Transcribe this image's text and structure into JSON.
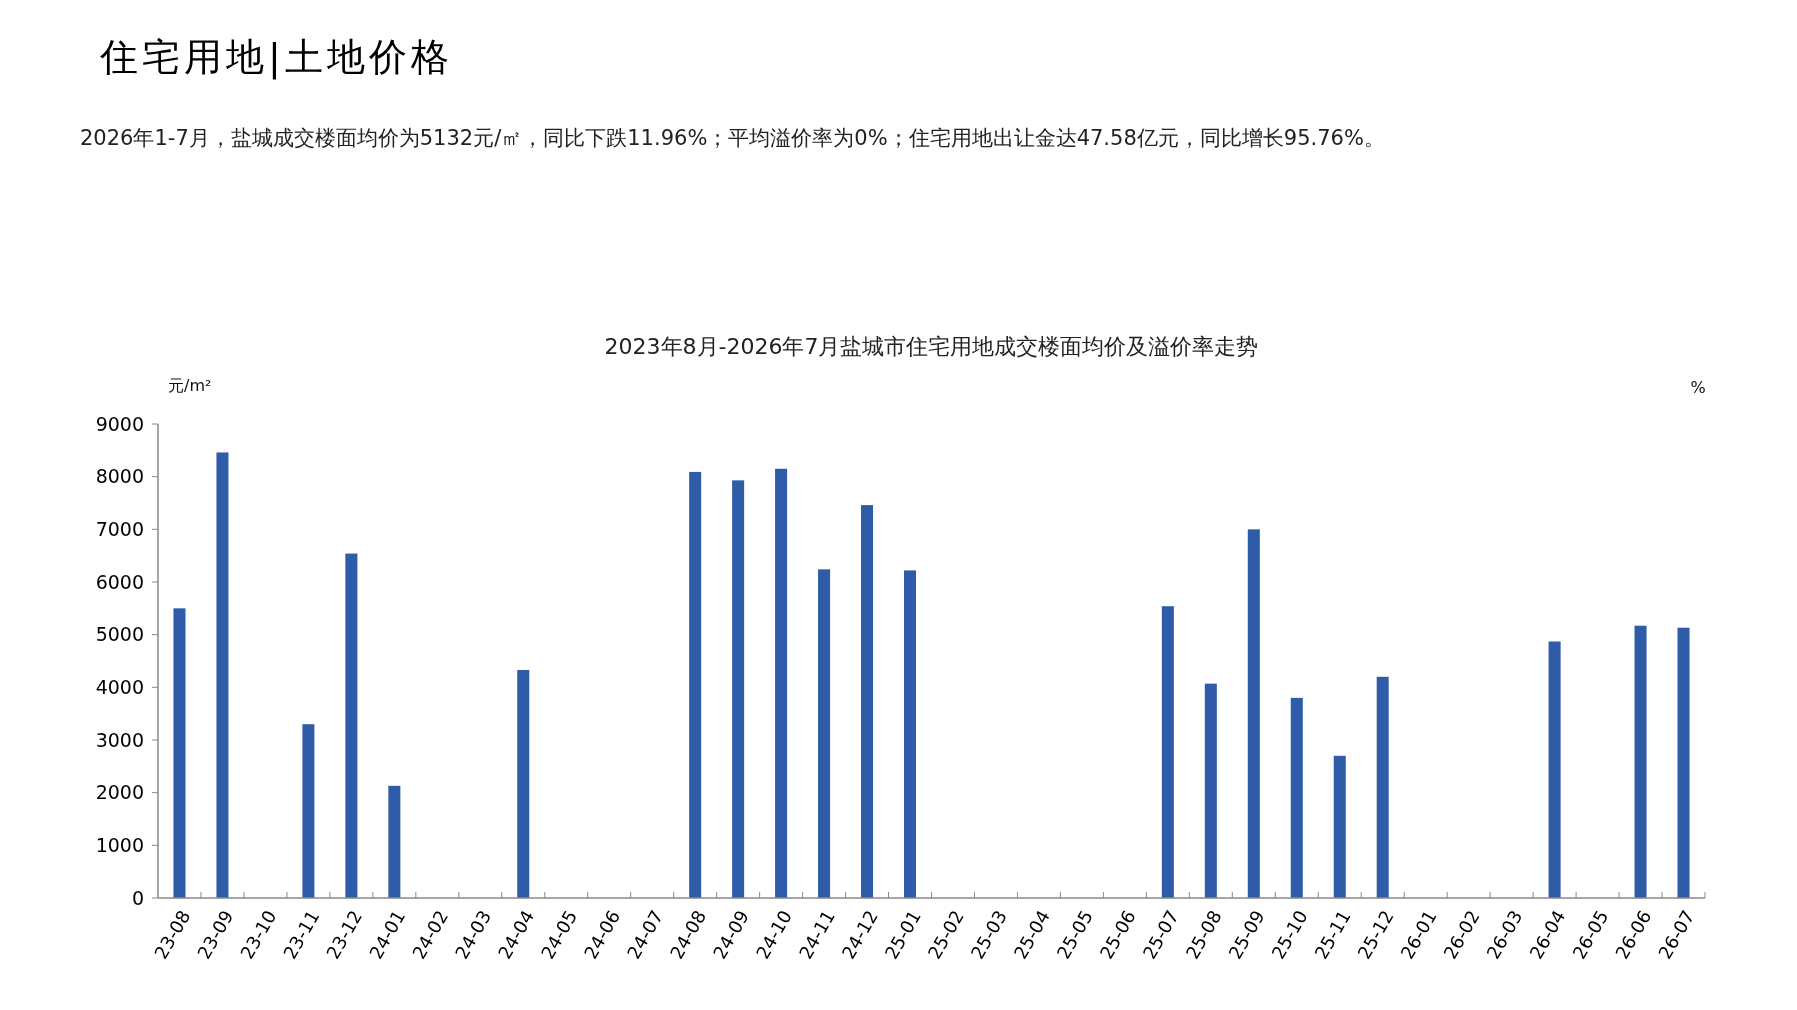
{
  "chart_data": {
    "type": "bar",
    "title": "2023年8月-2026年7月盐城市住宅用地成交楼面均价及溢价率走势",
    "annotations": [
      "住宅用地|土地价格",
      "2026年1-7月，盐城成交楼面均价为5132元/㎡，同比下跌11.96%；平均溢价率为0%；住宅用地出让金达47.58亿元，同比增长95.76%。"
    ],
    "ylabel": "元/m²",
    "y2label": "%",
    "categories": [
      "23-08",
      "23-09",
      "23-10",
      "23-11",
      "23-12",
      "24-01",
      "24-02",
      "24-03",
      "24-04",
      "24-05",
      "24-06",
      "24-07",
      "24-08",
      "24-09",
      "24-10",
      "24-11",
      "24-12",
      "25-01",
      "25-02",
      "25-03",
      "25-04",
      "25-05",
      "25-06",
      "25-07",
      "25-08",
      "25-09",
      "25-10",
      "25-11",
      "25-12",
      "26-01",
      "26-02",
      "26-03",
      "26-04",
      "26-05",
      "26-06",
      "26-07"
    ],
    "values": [
      5500,
      8460,
      0,
      3300,
      6540,
      2130,
      0,
      0,
      4330,
      0,
      0,
      0,
      8090,
      7930,
      8150,
      6240,
      7460,
      6220,
      0,
      0,
      0,
      0,
      0,
      5540,
      4070,
      7000,
      3800,
      2700,
      4200,
      0,
      0,
      0,
      4870,
      0,
      5170,
      5132
    ],
    "color": "#2e5ca8",
    "ylim": [
      0,
      9000
    ],
    "yticks": [
      0,
      1000,
      2000,
      3000,
      4000,
      5000,
      6000,
      7000,
      8000,
      9000
    ],
    "grid": false
  }
}
